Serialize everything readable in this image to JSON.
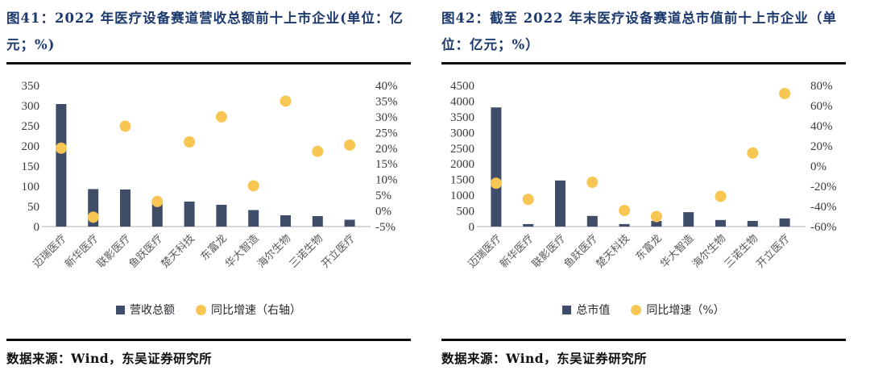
{
  "colors": {
    "bar": "#3f4d68",
    "dot": "#f8c653",
    "title_navy": "#1d3a6e",
    "baseline": "#c9c9c9",
    "rule_black": "#0d0d0d"
  },
  "panels": [
    {
      "title": "图41：2022 年医疗设备赛道营收总额前十上市企业(单位：亿元；%)",
      "legend_bar": "营收总额",
      "legend_dot": "同比增速（右轴）",
      "source": "数据来源：Wind，东吴证券研究所"
    },
    {
      "title": "图42：截至 2022 年末医疗设备赛道总市值前十上市企业（单位：亿元；%）",
      "legend_bar": "总市值",
      "legend_dot": "同比增速（%）",
      "source": "数据来源：Wind，东吴证券研究所"
    }
  ],
  "chart_data": [
    {
      "type": "bar",
      "subtype": "combo-bar-scatter",
      "title": "2022 年医疗设备赛道营收总额前十上市企业",
      "categories": [
        "迈瑞医疗",
        "新华医疗",
        "联影医疗",
        "鱼跃医疗",
        "楚天科技",
        "东富龙",
        "华大智造",
        "海尔生物",
        "三诺生物",
        "开立医疗"
      ],
      "series": [
        {
          "name": "营收总额",
          "type": "bar",
          "axis": "left",
          "unit": "亿元",
          "values": [
            304,
            93,
            92,
            66,
            62,
            54,
            41,
            28,
            26,
            17
          ]
        },
        {
          "name": "同比增速（右轴）",
          "type": "scatter",
          "axis": "right",
          "unit": "%",
          "values": [
            20,
            -2,
            27,
            3,
            22,
            30,
            8,
            35,
            19,
            21
          ]
        }
      ],
      "left_axis": {
        "min": 0,
        "max": 350,
        "step": 50,
        "format": "number"
      },
      "right_axis": {
        "min": -5,
        "max": 40,
        "step": 5,
        "format": "percent"
      },
      "grid": false,
      "legend_position": "bottom"
    },
    {
      "type": "bar",
      "subtype": "combo-bar-scatter",
      "title": "截至 2022 年末医疗设备赛道总市值前十上市企业",
      "categories": [
        "迈瑞医疗",
        "新华医疗",
        "联影医疗",
        "鱼跃医疗",
        "楚天科技",
        "东富龙",
        "华大智造",
        "海尔生物",
        "三诺生物",
        "开立医疗"
      ],
      "series": [
        {
          "name": "总市值",
          "type": "bar",
          "axis": "left",
          "unit": "亿元",
          "values": [
            3800,
            80,
            1470,
            340,
            80,
            180,
            460,
            210,
            180,
            260
          ]
        },
        {
          "name": "同比增速（%）",
          "type": "scatter",
          "axis": "right",
          "unit": "%",
          "values": [
            -17,
            -33,
            null,
            -16,
            -44,
            -50,
            null,
            -30,
            13,
            72
          ]
        }
      ],
      "left_axis": {
        "min": 0,
        "max": 4500,
        "step": 500,
        "format": "number"
      },
      "right_axis": {
        "min": -60,
        "max": 80,
        "step": 20,
        "format": "percent"
      },
      "grid": false,
      "legend_position": "bottom"
    }
  ]
}
